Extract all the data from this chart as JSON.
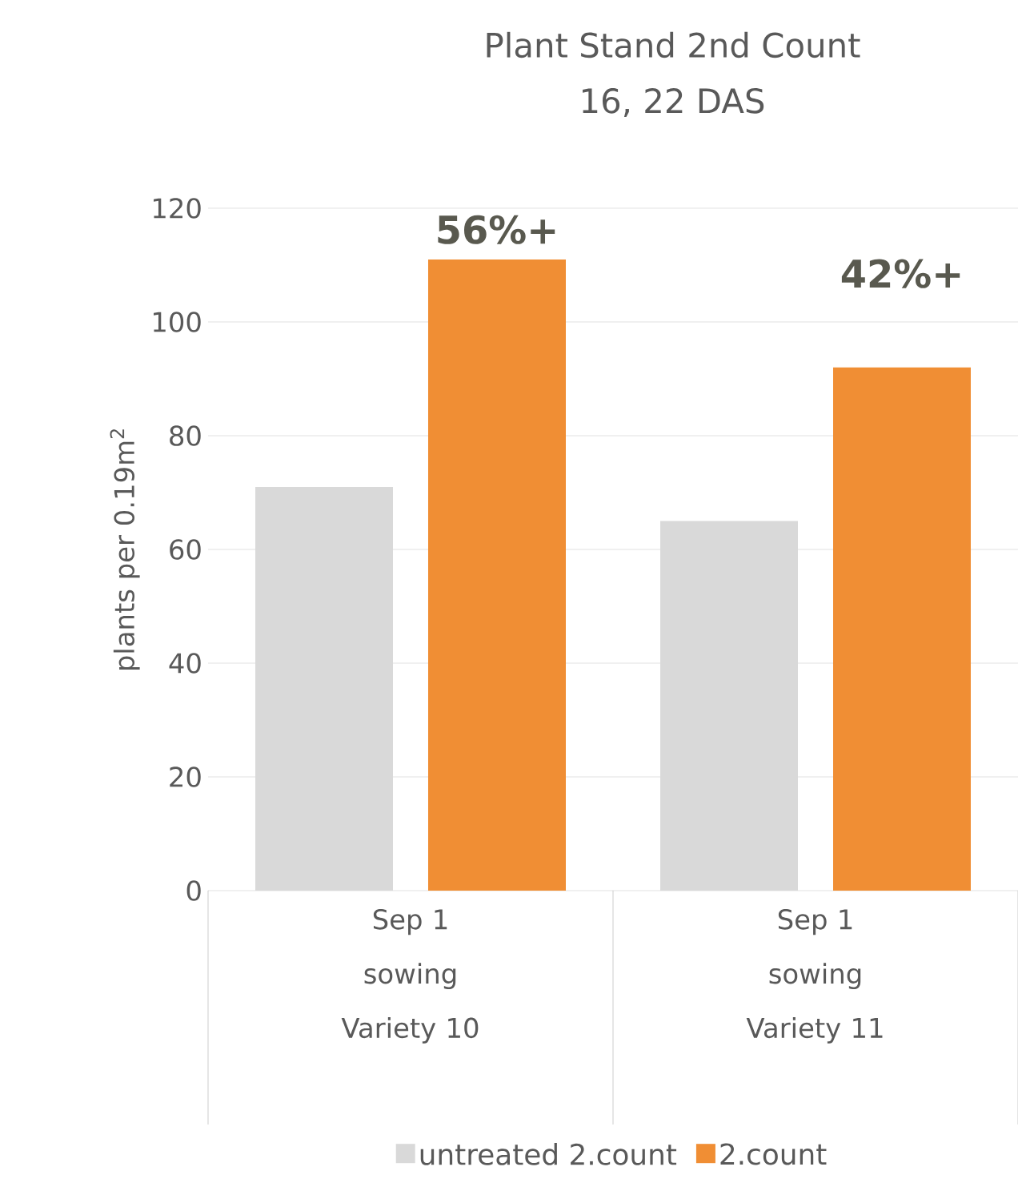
{
  "chart_data": {
    "type": "bar",
    "title": "Plant Stand 2nd Count",
    "subtitle": "16, 22  DAS",
    "ylabel": "plants per 0.19m$^{2}$",
    "categories": [
      "Sep 1 sowing Variety 10",
      "Sep 1 sowing Variety 11"
    ],
    "series": [
      {
        "name": "untreated 2.count",
        "color": "#d9d9d9",
        "values": [
          71,
          65
        ]
      },
      {
        "name": "2.count",
        "color": "#f08e34",
        "values": [
          111,
          92
        ]
      }
    ],
    "annotations": [
      "56%+",
      "42%+"
    ],
    "ylim": [
      0,
      120
    ],
    "yticks": [
      0,
      20,
      40,
      60,
      80,
      100,
      120
    ],
    "grid": "y",
    "legend": "bottom"
  }
}
